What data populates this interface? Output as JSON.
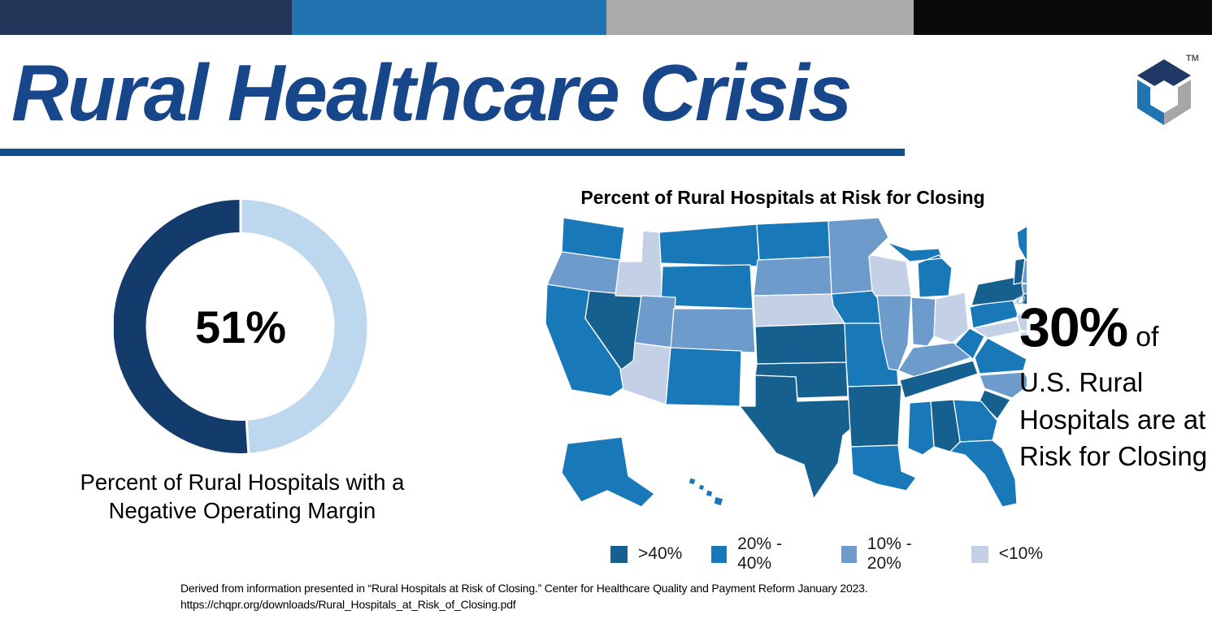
{
  "top_bar": {
    "colors": [
      "#233459",
      "#2173B2",
      "#ABABAB",
      "#0A0A0A"
    ]
  },
  "header": {
    "title": "Rural Healthcare Crisis",
    "title_color": "#17478A",
    "underline_color": "#0F4E8F"
  },
  "logo": {
    "tm": "TM",
    "colors": {
      "top": "#1F3864",
      "left": "#2173B2",
      "right": "#A6A6A6"
    }
  },
  "donut_section": {
    "caption": "Percent of Rural Hospitals with a Negative Operating Margin"
  },
  "callout": {
    "stat": "30%",
    "stat_suffix": "of",
    "body": "U.S. Rural Hospitals are at Risk for Closing"
  },
  "footer": {
    "line1": "Derived from information presented in “Rural Hospitals at Risk of Closing.” Center for Healthcare Quality and Payment Reform January 2023.",
    "line2": "https://chqpr.org/downloads/Rural_Hospitals_at_Risk_of_Closing.pdf"
  },
  "chart_data": [
    {
      "type": "pie",
      "subtype": "donut",
      "title": "Percent of Rural Hospitals with a Negative Operating Margin",
      "center_label": "51%",
      "start_angle": "top",
      "direction_of_first_slice": "counterclockwise",
      "slices": [
        {
          "label": "Rural hospitals with a negative operating margin",
          "value": 51,
          "color": "#133C6D"
        },
        {
          "label": "Other rural hospitals",
          "value": 49,
          "color": "#BDD7EE"
        }
      ]
    },
    {
      "type": "heatmap",
      "subtype": "us-state-choropleth",
      "title": "Percent of Rural Hospitals at Risk for Closing",
      "legend_position": "bottom",
      "legend": [
        {
          "label": ">40%",
          "color": "#15608F"
        },
        {
          "label": "20% - 40%",
          "color": "#1878B8"
        },
        {
          "label": "10% - 20%",
          "color": "#6D9CCC"
        },
        {
          "label": "<10%",
          "color": "#C3D0E5"
        }
      ],
      "states": {
        "WA": "20% - 40%",
        "OR": "10% - 20%",
        "CA": "20% - 40%",
        "NV": ">40%",
        "ID": "<10%",
        "MT": "20% - 40%",
        "WY": "20% - 40%",
        "UT": "10% - 20%",
        "CO": "10% - 20%",
        "AZ": "<10%",
        "NM": "20% - 40%",
        "ND": "20% - 40%",
        "SD": "10% - 20%",
        "NE": "<10%",
        "KS": ">40%",
        "OK": ">40%",
        "TX": ">40%",
        "MN": "10% - 20%",
        "IA": "20% - 40%",
        "MO": "20% - 40%",
        "AR": ">40%",
        "LA": "20% - 40%",
        "WI": "<10%",
        "IL": "10% - 20%",
        "IN": "10% - 20%",
        "OH": "<10%",
        "MI": "20% - 40%",
        "KY": "10% - 20%",
        "TN": ">40%",
        "MS": "20% - 40%",
        "AL": ">40%",
        "GA": "20% - 40%",
        "FL": "20% - 40%",
        "SC": ">40%",
        "NC": "10% - 20%",
        "VA": "20% - 40%",
        "WV": "20% - 40%",
        "PA": "20% - 40%",
        "NY": ">40%",
        "NJ": "<10%",
        "DE": "<10%",
        "MD": "<10%",
        "VT": ">40%",
        "NH": "10% - 20%",
        "ME": "20% - 40%",
        "MA": "10% - 20%",
        "RI": "10% - 20%",
        "CT": ">40%",
        "AK": "20% - 40%",
        "HI": "20% - 40%"
      }
    }
  ]
}
